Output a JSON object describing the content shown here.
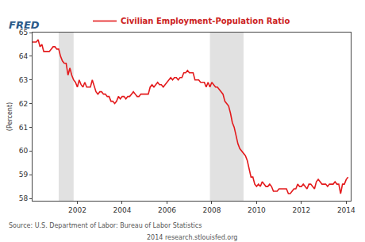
{
  "chart_data": {
    "type": "line",
    "logo": "FRED",
    "ylabel": "(Percent)",
    "source": "Source: U.S. Department of Labor: Bureau of Labor Statistics",
    "credit": "2014 research.stlouisfed.org",
    "x": [
      2000,
      2000.083,
      2000.167,
      2000.25,
      2000.333,
      2000.417,
      2000.5,
      2000.583,
      2000.667,
      2000.75,
      2000.833,
      2000.917,
      2001,
      2001.083,
      2001.167,
      2001.25,
      2001.333,
      2001.417,
      2001.5,
      2001.583,
      2001.667,
      2001.75,
      2001.833,
      2001.917,
      2002,
      2002.083,
      2002.167,
      2002.25,
      2002.333,
      2002.417,
      2002.5,
      2002.583,
      2002.667,
      2002.75,
      2002.833,
      2002.917,
      2003,
      2003.083,
      2003.167,
      2003.25,
      2003.333,
      2003.417,
      2003.5,
      2003.583,
      2003.667,
      2003.75,
      2003.833,
      2003.917,
      2004,
      2004.083,
      2004.167,
      2004.25,
      2004.333,
      2004.417,
      2004.5,
      2004.583,
      2004.667,
      2004.75,
      2004.833,
      2004.917,
      2005,
      2005.083,
      2005.167,
      2005.25,
      2005.333,
      2005.417,
      2005.5,
      2005.583,
      2005.667,
      2005.75,
      2005.833,
      2005.917,
      2006,
      2006.083,
      2006.167,
      2006.25,
      2006.333,
      2006.417,
      2006.5,
      2006.583,
      2006.667,
      2006.75,
      2006.833,
      2006.917,
      2007,
      2007.083,
      2007.167,
      2007.25,
      2007.333,
      2007.417,
      2007.5,
      2007.583,
      2007.667,
      2007.75,
      2007.833,
      2007.917,
      2008,
      2008.083,
      2008.167,
      2008.25,
      2008.333,
      2008.417,
      2008.5,
      2008.583,
      2008.667,
      2008.75,
      2008.833,
      2008.917,
      2009,
      2009.083,
      2009.167,
      2009.25,
      2009.333,
      2009.417,
      2009.5,
      2009.583,
      2009.667,
      2009.75,
      2009.833,
      2009.917,
      2010,
      2010.083,
      2010.167,
      2010.25,
      2010.333,
      2010.417,
      2010.5,
      2010.583,
      2010.667,
      2010.75,
      2010.833,
      2010.917,
      2011,
      2011.083,
      2011.167,
      2011.25,
      2011.333,
      2011.417,
      2011.5,
      2011.583,
      2011.667,
      2011.75,
      2011.833,
      2011.917,
      2012,
      2012.083,
      2012.167,
      2012.25,
      2012.333,
      2012.417,
      2012.5,
      2012.583,
      2012.667,
      2012.75,
      2012.833,
      2012.917,
      2013,
      2013.083,
      2013.167,
      2013.25,
      2013.333,
      2013.417,
      2013.5,
      2013.583,
      2013.667,
      2013.75,
      2013.833,
      2013.917,
      2014,
      2014.083
    ],
    "series": [
      {
        "name": "Civilian Employment-Population Ratio",
        "color": "#e31a1c",
        "values": [
          64.6,
          64.6,
          64.6,
          64.7,
          64.4,
          64.5,
          64.2,
          64.2,
          64.2,
          64.2,
          64.3,
          64.4,
          64.4,
          64.3,
          64.3,
          64.0,
          63.8,
          63.7,
          63.7,
          63.2,
          63.5,
          63.2,
          63.0,
          62.9,
          62.7,
          63.0,
          62.8,
          62.7,
          62.9,
          62.7,
          62.7,
          62.7,
          63.0,
          62.7,
          62.5,
          62.4,
          62.5,
          62.5,
          62.4,
          62.4,
          62.3,
          62.3,
          62.1,
          62.1,
          62.0,
          62.1,
          62.3,
          62.2,
          62.3,
          62.3,
          62.2,
          62.3,
          62.3,
          62.4,
          62.5,
          62.4,
          62.3,
          62.3,
          62.4,
          62.4,
          62.4,
          62.4,
          62.4,
          62.7,
          62.8,
          62.7,
          62.8,
          62.9,
          62.8,
          62.8,
          62.7,
          62.8,
          62.9,
          63.0,
          63.1,
          63.0,
          63.1,
          63.1,
          63.0,
          63.1,
          63.1,
          63.3,
          63.3,
          63.4,
          63.3,
          63.3,
          63.3,
          63.0,
          63.0,
          63.0,
          62.9,
          62.9,
          62.9,
          62.7,
          62.9,
          62.7,
          62.9,
          62.8,
          62.7,
          62.7,
          62.6,
          62.5,
          62.4,
          62.1,
          62.0,
          61.9,
          61.6,
          61.2,
          61.0,
          60.6,
          60.3,
          60.1,
          60.0,
          59.9,
          59.8,
          59.6,
          59.2,
          58.9,
          58.9,
          58.6,
          58.5,
          58.6,
          58.5,
          58.7,
          58.6,
          58.5,
          58.5,
          58.6,
          58.5,
          58.3,
          58.3,
          58.3,
          58.4,
          58.4,
          58.4,
          58.4,
          58.4,
          58.2,
          58.2,
          58.3,
          58.4,
          58.4,
          58.6,
          58.5,
          58.5,
          58.6,
          58.5,
          58.4,
          58.6,
          58.6,
          58.5,
          58.4,
          58.7,
          58.8,
          58.7,
          58.6,
          58.6,
          58.6,
          58.5,
          58.6,
          58.6,
          58.6,
          58.7,
          58.6,
          58.6,
          58.2,
          58.6,
          58.6,
          58.8,
          58.9
        ]
      }
    ],
    "shaded_x": [
      [
        2001.167,
        2001.833
      ],
      [
        2007.917,
        2009.417
      ]
    ],
    "xlim": [
      2000,
      2014.2
    ],
    "xticks": [
      2002,
      2004,
      2006,
      2008,
      2010,
      2012,
      2014
    ],
    "ylim": [
      57.9,
      65
    ],
    "yticks": [
      58,
      59,
      60,
      61,
      62,
      63,
      64,
      65
    ],
    "grid": false,
    "legend": "top"
  }
}
